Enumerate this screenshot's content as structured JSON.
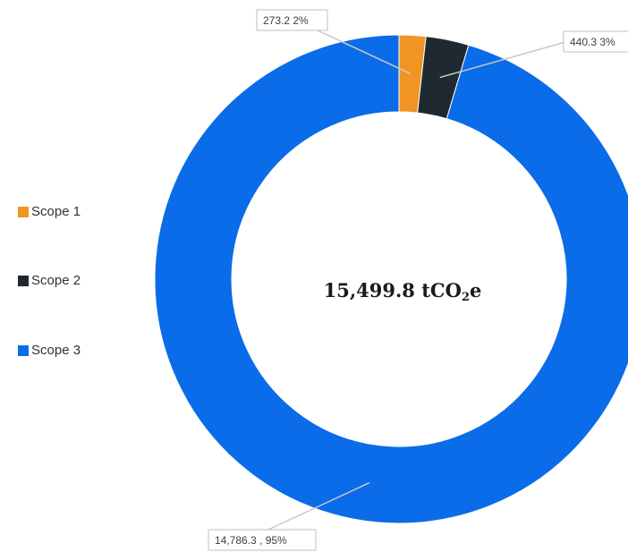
{
  "chart_data": {
    "type": "pie",
    "title": "",
    "center_value": "15,499.8",
    "center_unit_prefix": "tCO",
    "center_unit_sub": "2",
    "center_unit_suffix": "e",
    "categories": [
      "Scope 1",
      "Scope 2",
      "Scope 3"
    ],
    "values": [
      273.2,
      440.3,
      14786.3
    ],
    "colors": [
      "#F29423",
      "#1E2A30",
      "#0A6CE8"
    ],
    "data_labels": [
      "273.2  2%",
      "440.3  3%",
      "14,786.3 , 95%"
    ],
    "legend_position": "left"
  }
}
